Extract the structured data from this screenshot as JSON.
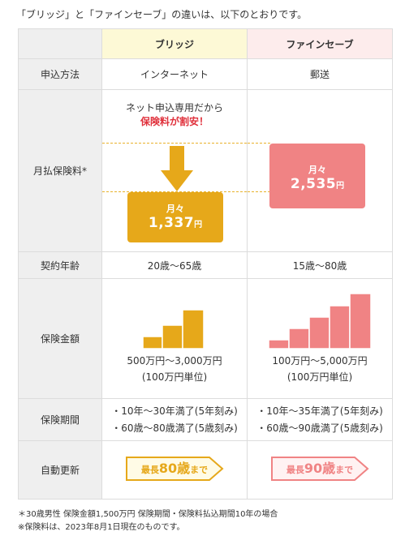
{
  "intro": "「ブリッジ」と「ファインセーブ」の違いは、以下のとおりです。",
  "header": {
    "bridge": "ブリッジ",
    "finesave": "ファインセーブ"
  },
  "rows": {
    "method": {
      "label": "申込方法",
      "bridge": "インターネット",
      "finesave": "郵送"
    },
    "price": {
      "label": "月払保険料*",
      "note_line1": "ネット申込専用だから",
      "note_line2": "保険料が割安！",
      "bridge_month": "月々",
      "bridge_amount": "1,337",
      "bridge_yen": "円",
      "finesave_month": "月々",
      "finesave_amount": "2,535",
      "finesave_yen": "円"
    },
    "age": {
      "label": "契約年齢",
      "bridge": "20歳〜65歳",
      "finesave": "15歳〜80歳"
    },
    "amount": {
      "label": "保険金額",
      "bridge_line1": "500万円〜3,000万円",
      "bridge_line2": "(100万円単位)",
      "finesave_line1": "100万円〜5,000万円",
      "finesave_line2": "(100万円単位)"
    },
    "period": {
      "label": "保険期間",
      "bridge_1": "・10年〜30年満了(5年刻み)",
      "bridge_2": "・60歳〜80歳満了(5歳刻み)",
      "finesave_1": "・10年〜35年満了(5年刻み)",
      "finesave_2": "・60歳〜90歳満了(5歳刻み)"
    },
    "renew": {
      "label": "自動更新",
      "bridge_pre": "最長",
      "bridge_num": "80歳",
      "bridge_post": "まで",
      "finesave_pre": "最長",
      "finesave_num": "90歳",
      "finesave_post": "まで"
    }
  },
  "footnotes": {
    "line1": "＊30歳男性 保険金額1,500万円 保険期間・保険料払込期間10年の場合",
    "line2": "※保険料は、2023年8月1日現在のものです。"
  },
  "colors": {
    "bridge": "#e6a81a",
    "finesave": "#f08384"
  }
}
